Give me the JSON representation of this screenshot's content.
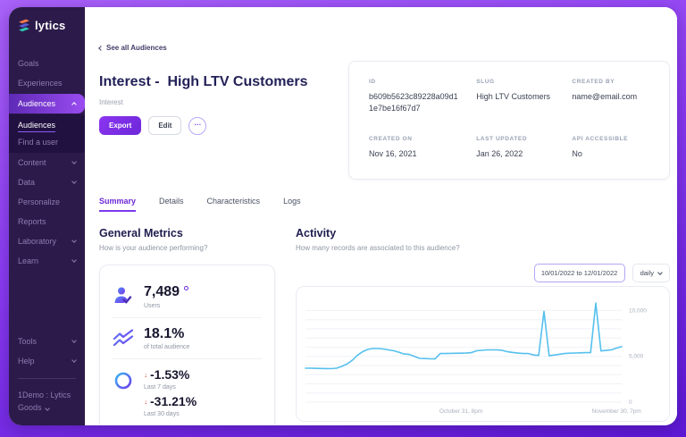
{
  "colors": {
    "accent_purple": "#7c3aed",
    "sidebar_bg": "#2b1a4a",
    "chart_line": "#55c0ee",
    "negative_red": "#e05252"
  },
  "sidebar": {
    "logo_text": "lytics",
    "items": [
      {
        "label": "Goals"
      },
      {
        "label": "Experiences"
      },
      {
        "label": "Audiences"
      },
      {
        "label": "Content"
      },
      {
        "label": "Data"
      },
      {
        "label": "Personalize"
      },
      {
        "label": "Reports"
      },
      {
        "label": "Laboratory"
      },
      {
        "label": "Learn"
      },
      {
        "label": "Tools"
      },
      {
        "label": "Help"
      }
    ],
    "subitems": [
      {
        "label": "Audiences"
      },
      {
        "label": "Find a user"
      }
    ],
    "account_label": "1Demo : Lytics Goods"
  },
  "header": {
    "back_label": "See all Audiences",
    "title": "Interest -  High LTV Customers",
    "subtitle": "Interest",
    "export_label": "Export",
    "edit_label": "Edit",
    "more_label": "···"
  },
  "info_card": {
    "fields": [
      {
        "label": "ID",
        "value": "b609b5623c89228a09d11e7be16f67d7"
      },
      {
        "label": "SLUG",
        "value": "High LTV Customers"
      },
      {
        "label": "CREATED BY",
        "value": "name@email.com"
      },
      {
        "label": "CREATED ON",
        "value": "Nov 16, 2021"
      },
      {
        "label": "LAST UPDATED",
        "value": "Jan 26, 2022"
      },
      {
        "label": "API ACCESSIBLE",
        "value": "No"
      }
    ]
  },
  "tabs": [
    {
      "label": "Summary"
    },
    {
      "label": "Details"
    },
    {
      "label": "Characteristics"
    },
    {
      "label": "Logs"
    }
  ],
  "general_metrics": {
    "title": "General Metrics",
    "subtitle": "How is your audience performing?",
    "users": {
      "value": "7,489",
      "label": "Users"
    },
    "total_audience": {
      "value": "18.1%",
      "label": "of total audience"
    },
    "change_7d": {
      "value": "-1.53%",
      "label": "Last 7 days",
      "direction": "down",
      "arrow": "↓"
    },
    "change_30d": {
      "value": "-31.21%",
      "label": "Last 30 days",
      "direction": "down",
      "arrow": "↓"
    }
  },
  "activity": {
    "title": "Activity",
    "subtitle": "How many records are associated to this audience?",
    "date_range": "10/01/2022 to 12/01/2022",
    "granularity": "daily"
  },
  "chart_data": {
    "type": "line",
    "title": "Audience activity (records over time)",
    "x_range": [
      "10/01/2022",
      "12/01/2022"
    ],
    "granularity": "daily",
    "ylim": [
      0,
      11500
    ],
    "grid_interval": 1000,
    "grid": true,
    "legend": false,
    "line_color": "#55c0ee",
    "y_ticks": [
      {
        "value": 10000,
        "label": "10,000"
      },
      {
        "value": 5000,
        "label": "5,000"
      },
      {
        "value": 0,
        "label": "0"
      }
    ],
    "x_tick_labels": [
      {
        "label": "October 31, 8pm",
        "index": 30
      },
      {
        "label": "November 30, 7pm",
        "index": 60
      }
    ],
    "values": [
      3700,
      3700,
      3680,
      3670,
      3660,
      3650,
      3700,
      3900,
      4150,
      4550,
      5100,
      5500,
      5750,
      5850,
      5850,
      5800,
      5700,
      5600,
      5450,
      5250,
      5200,
      5000,
      4780,
      4760,
      4730,
      4720,
      5300,
      5300,
      5320,
      5330,
      5340,
      5350,
      5400,
      5600,
      5650,
      5700,
      5700,
      5700,
      5640,
      5500,
      5420,
      5350,
      5300,
      5300,
      5150,
      5100,
      9900,
      5060,
      5150,
      5220,
      5300,
      5340,
      5360,
      5380,
      5400,
      5400,
      10800,
      5580,
      5640,
      5700,
      5900,
      6050
    ]
  }
}
